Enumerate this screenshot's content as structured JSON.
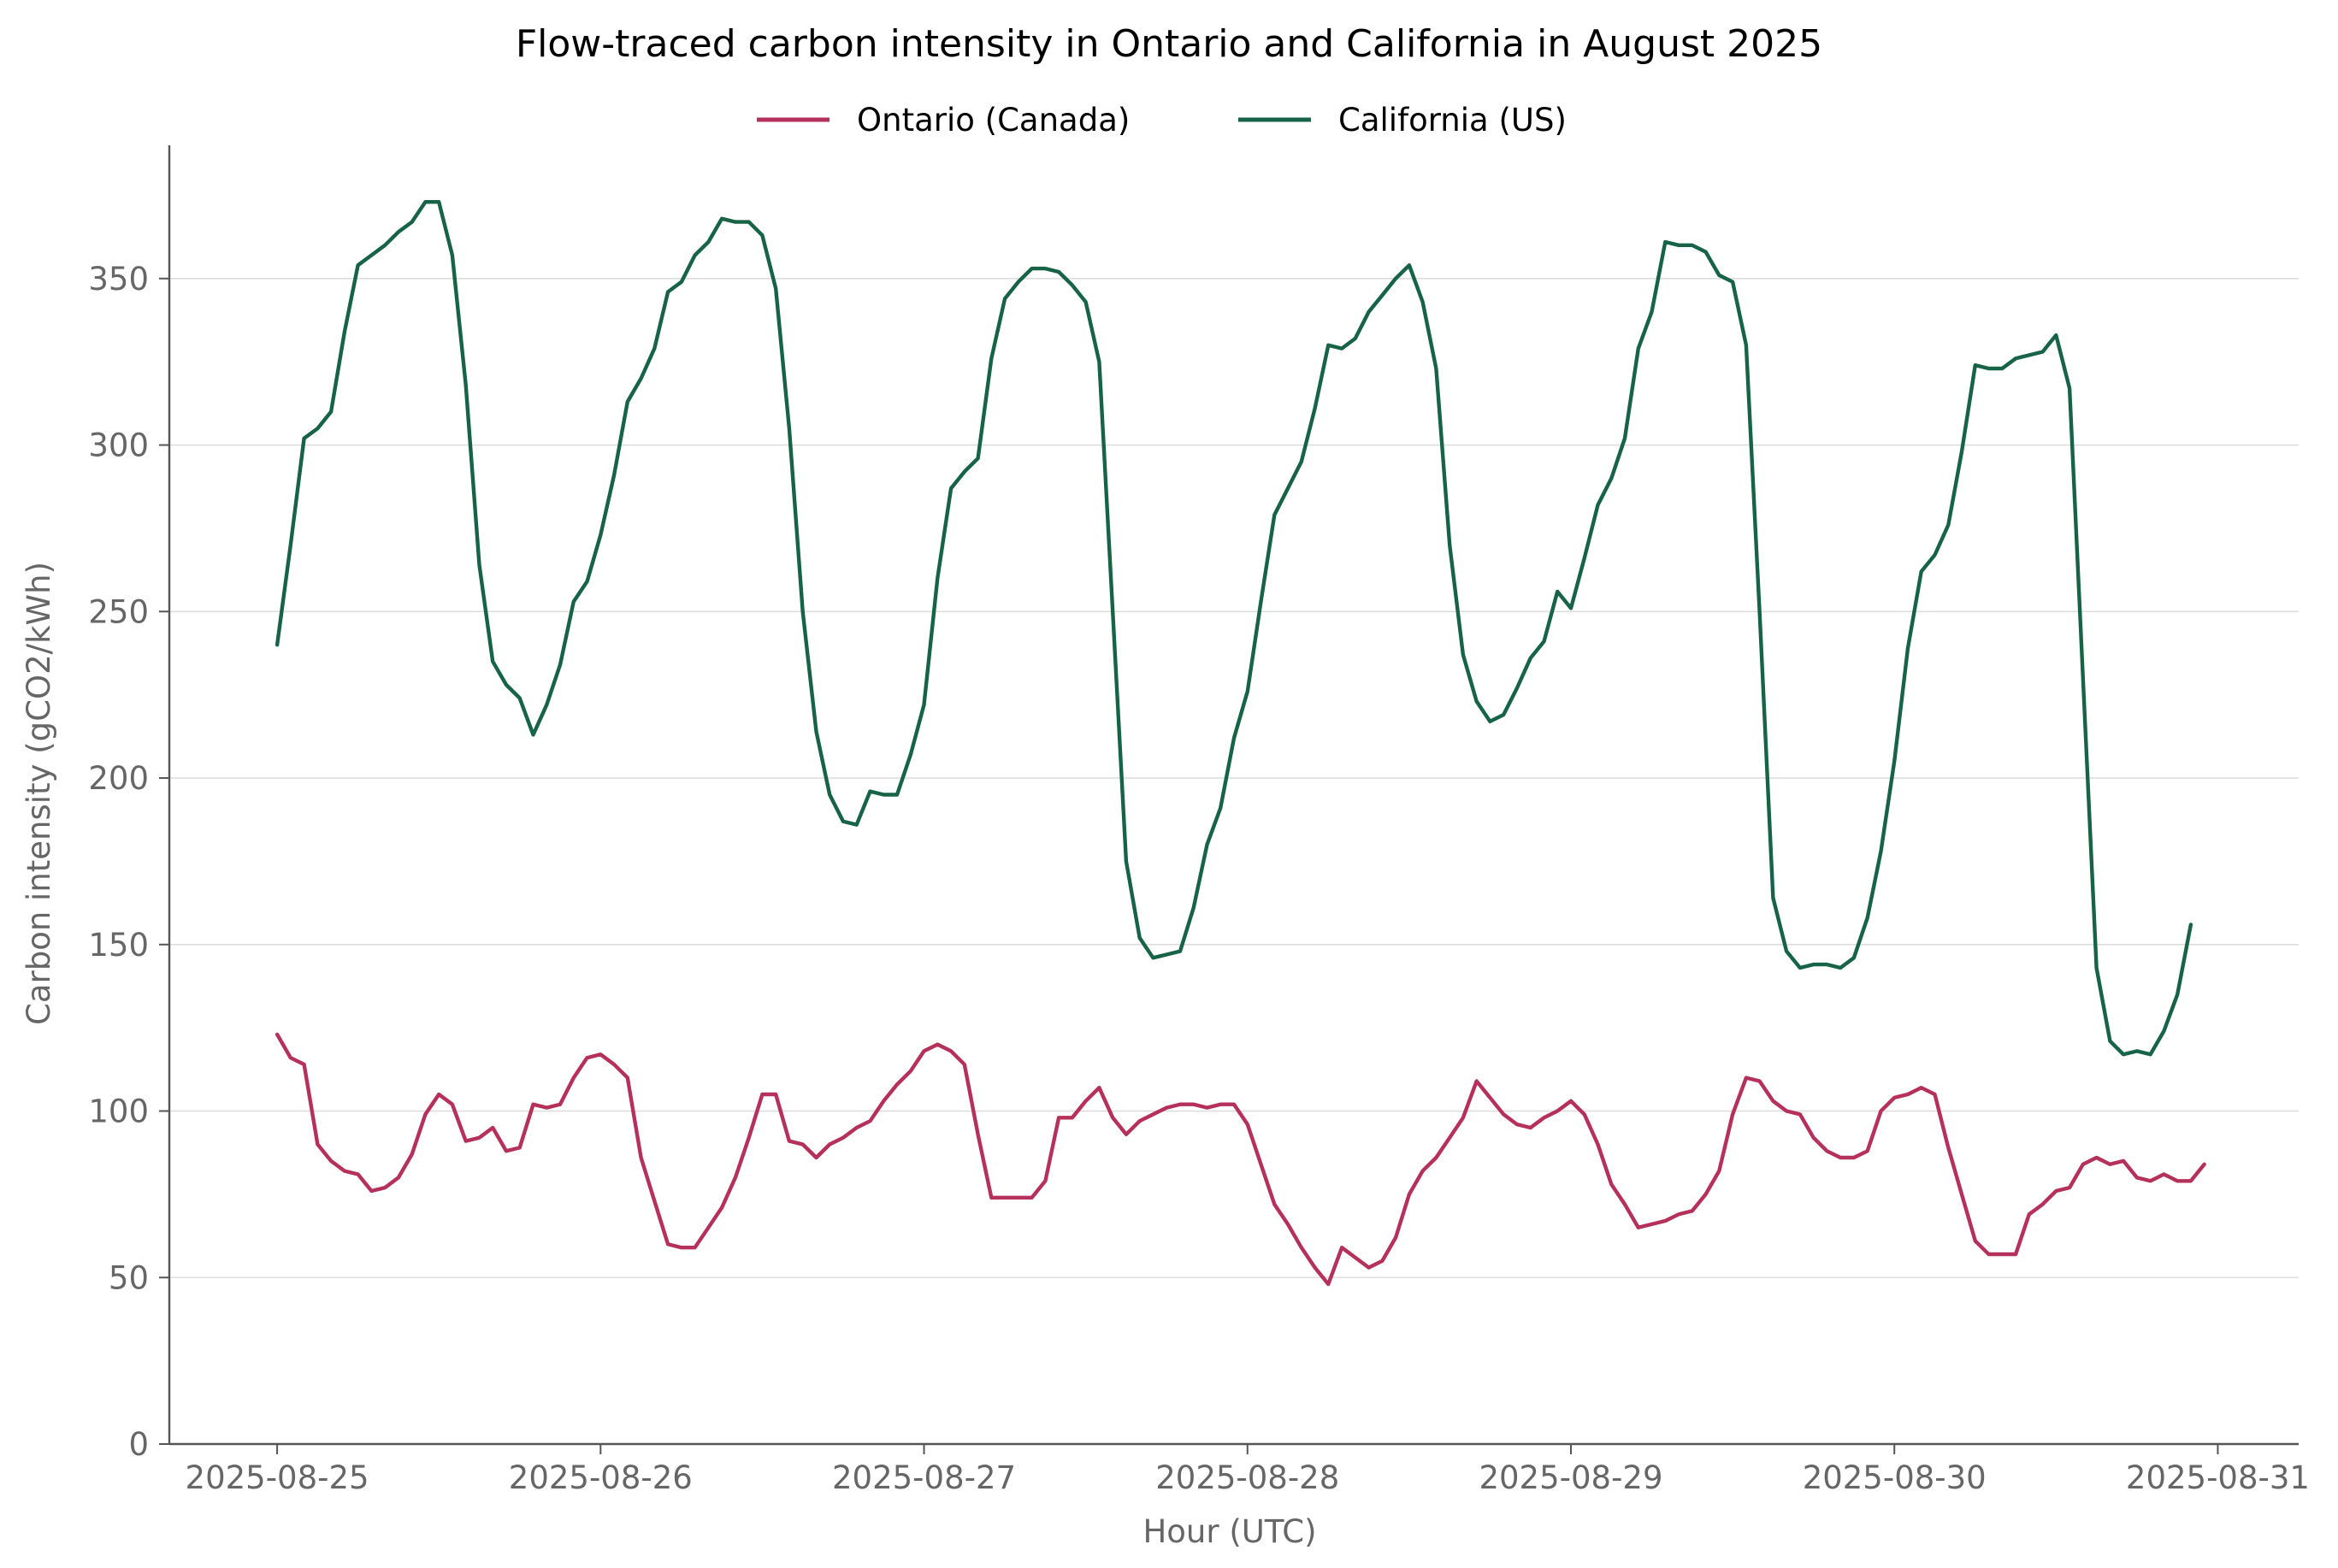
{
  "chart_data": {
    "type": "line",
    "title": "Flow-traced carbon intensity in Ontario and California in August 2025",
    "xlabel": "Hour (UTC)",
    "ylabel": "Carbon intensity (gCO2/kWh)",
    "x_start": "2025-08-25T00:00",
    "x_step_hours": 1,
    "xlim": [
      "2025-08-24T16:00",
      "2025-08-31T06:00"
    ],
    "ylim": [
      0,
      390
    ],
    "xticks": [
      "2025-08-25",
      "2025-08-26",
      "2025-08-27",
      "2025-08-28",
      "2025-08-29",
      "2025-08-30",
      "2025-08-31"
    ],
    "yticks": [
      0,
      50,
      100,
      150,
      200,
      250,
      300,
      350
    ],
    "grid": "horizontal",
    "legend_position": "top-center",
    "series": [
      {
        "name": "Ontario (Canada)",
        "color": "#b5305a",
        "values": [
          123,
          116,
          114,
          90,
          85,
          82,
          81,
          76,
          77,
          80,
          87,
          99,
          105,
          102,
          91,
          92,
          95,
          88,
          89,
          102,
          101,
          102,
          110,
          116,
          117,
          114,
          110,
          86,
          73,
          60,
          59,
          59,
          65,
          71,
          80,
          92,
          105,
          105,
          91,
          90,
          86,
          90,
          92,
          95,
          97,
          103,
          108,
          112,
          118,
          120,
          118,
          114,
          93,
          74,
          74,
          74,
          74,
          79,
          98,
          98,
          103,
          107,
          98,
          93,
          97,
          99,
          101,
          102,
          102,
          101,
          102,
          102,
          96,
          84,
          72,
          66,
          59,
          53,
          48,
          59,
          56,
          53,
          55,
          62,
          75,
          82,
          86,
          92,
          98,
          109,
          104,
          99,
          96,
          95,
          98,
          100,
          103,
          99,
          90,
          78,
          72,
          65,
          66,
          67,
          69,
          70,
          75,
          82,
          99,
          110,
          109,
          103,
          100,
          99,
          92,
          88,
          86,
          86,
          88,
          100,
          104,
          105,
          107,
          105,
          89,
          75,
          61,
          57,
          57,
          57,
          69,
          72,
          76,
          77,
          84,
          86,
          84,
          85,
          80,
          79,
          81,
          79,
          79,
          84
        ]
      },
      {
        "name": "California (US)",
        "color": "#166347",
        "values": [
          240,
          270,
          302,
          305,
          310,
          334,
          354,
          357,
          360,
          364,
          367,
          373,
          373,
          357,
          318,
          264,
          235,
          228,
          224,
          213,
          222,
          234,
          253,
          259,
          273,
          291,
          313,
          320,
          329,
          346,
          349,
          357,
          361,
          368,
          367,
          367,
          363,
          347,
          305,
          250,
          214,
          195,
          187,
          186,
          196,
          195,
          195,
          207,
          222,
          260,
          287,
          292,
          296,
          326,
          344,
          349,
          353,
          353,
          352,
          348,
          343,
          325,
          250,
          175,
          152,
          146,
          147,
          148,
          161,
          180,
          191,
          212,
          226,
          253,
          279,
          287,
          295,
          311,
          330,
          329,
          332,
          340,
          345,
          350,
          354,
          343,
          323,
          270,
          237,
          223,
          217,
          219,
          227,
          236,
          241,
          256,
          251,
          266,
          282,
          290,
          302,
          329,
          340,
          361,
          360,
          360,
          358,
          351,
          349,
          330,
          250,
          164,
          148,
          143,
          144,
          144,
          143,
          146,
          158,
          178,
          205,
          239,
          262,
          267,
          276,
          298,
          324,
          323,
          323,
          326,
          327,
          328,
          333,
          317,
          230,
          143,
          121,
          117,
          118,
          117,
          124,
          135,
          156
        ]
      }
    ]
  }
}
